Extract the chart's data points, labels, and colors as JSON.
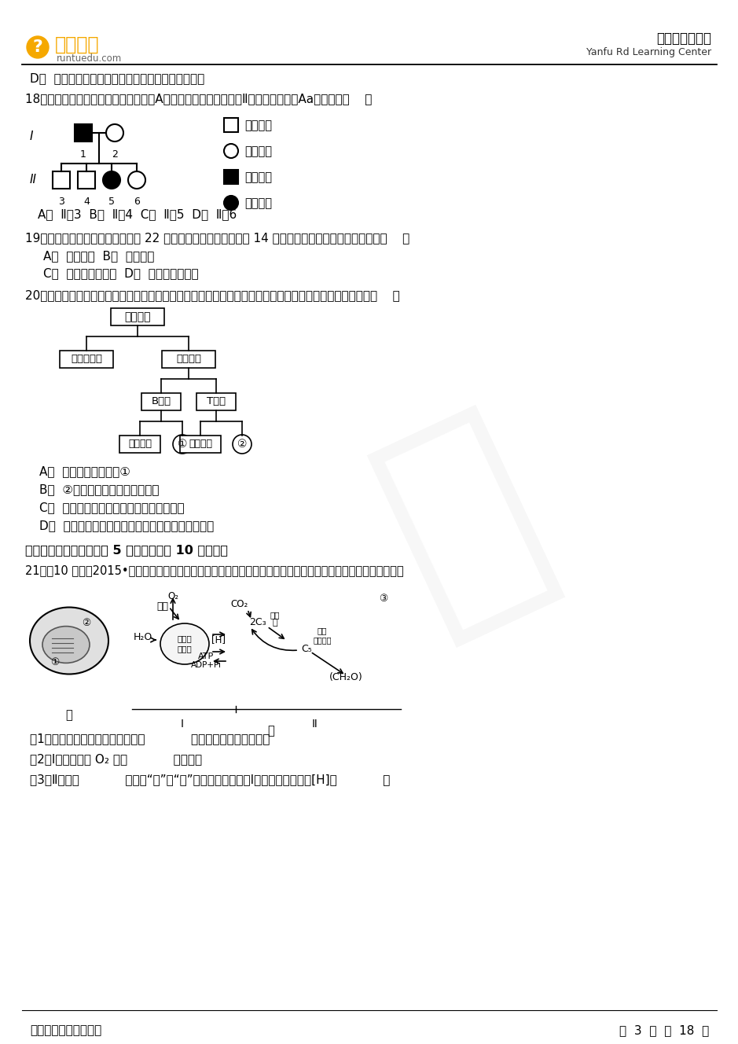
{
  "bg_color": "#ffffff",
  "text_color": "#000000",
  "page_width": 9.2,
  "page_height": 13.02,
  "logo_text": "闰土教育",
  "logo_sub": "runtuedu.com",
  "logo_color": "#F5A800",
  "header_right1": "盐阜路学习中心",
  "header_right2": "Yanfu Rd Learning Center",
  "q_d": "D．  基因控制性状是通过控制蛋白质的合成来实现的",
  "q18": "18．如图为一种常染色体上显性基因（A）决定的遗传病系谱图，Ⅱ代中，基因型为Aa的个体是（    ）",
  "q18_a": "A．  Ⅱ－3  B．  Ⅱ－4  C．  Ⅱ－5  D．  Ⅱ－6",
  "q19": "19．人慢性粒细胞白血病，是由第 22 号染色体的一部分移接到第 14 号染色体上造成的．这种变异属于（    ）",
  "q19_a": "A．  基因突变  B．  基因重组",
  "q19_b": "C．  染色体数目变异  D．  染色体结构变异",
  "q20": "20．免疫细胞在免疫调节中具有重要作用，免疫细胞的组成如下．下列关于免疫细胞作用的叙述，错误的是（    ）",
  "q20_a": "A．  产生抗体的细胞是①",
  "q20_b": "B．  ②在细胞免疫中具有重要作用",
  "q20_c": "C．  吞噬细胞只在非特异性免疫中发挥作用",
  "q20_d": "D．  在特异性免疫中发挥作用的主要细胞是淡巴细胞",
  "q21_title": "二、非选择题（本大题共 5 小题，每小题 10 分．））",
  "q21": "21．（10 分）（2015•海南学业考试）图中，甲是叶绻体模型图；乙是绻色植物光合作用过程图解，请据图回答：",
  "q21_1": "（1）吸收光能的色素分布在图甲的            （填写序号）的薄膜上．",
  "q21_2": "（2）Ⅰ阶段释放的 O₂ 来自            的光解．",
  "q21_3": "（3）Ⅱ阶段为            （填写“光”或“暗”）反应阶段，需要Ⅰ阶段提供的物质是[H]和            ．",
  "footer_left": "我要去看得更远的地方",
  "footer_right": "第  3  页  共  18  页"
}
